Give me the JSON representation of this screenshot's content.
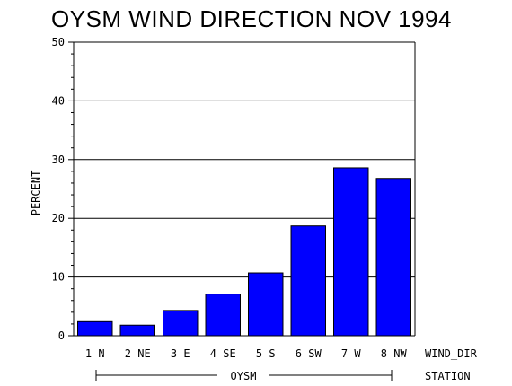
{
  "chart_data": {
    "type": "bar",
    "title": "OYSM WIND DIRECTION NOV 1994",
    "ylabel": "PERCENT",
    "xlabel": "WIND_DIR",
    "group_label": "OYSM",
    "group_axis_label": "STATION",
    "categories": [
      "1 N",
      "2 NE",
      "3 E",
      "4 SE",
      "5 S",
      "6 SW",
      "7 W",
      "8 NW"
    ],
    "values": [
      2.4,
      1.8,
      4.3,
      7.1,
      10.7,
      18.7,
      28.6,
      26.8
    ],
    "ylim": [
      0,
      50
    ],
    "yticks": [
      "0",
      "10",
      "20",
      "30",
      "40",
      "50"
    ],
    "grid": true,
    "bar_color": "#0000ff"
  }
}
